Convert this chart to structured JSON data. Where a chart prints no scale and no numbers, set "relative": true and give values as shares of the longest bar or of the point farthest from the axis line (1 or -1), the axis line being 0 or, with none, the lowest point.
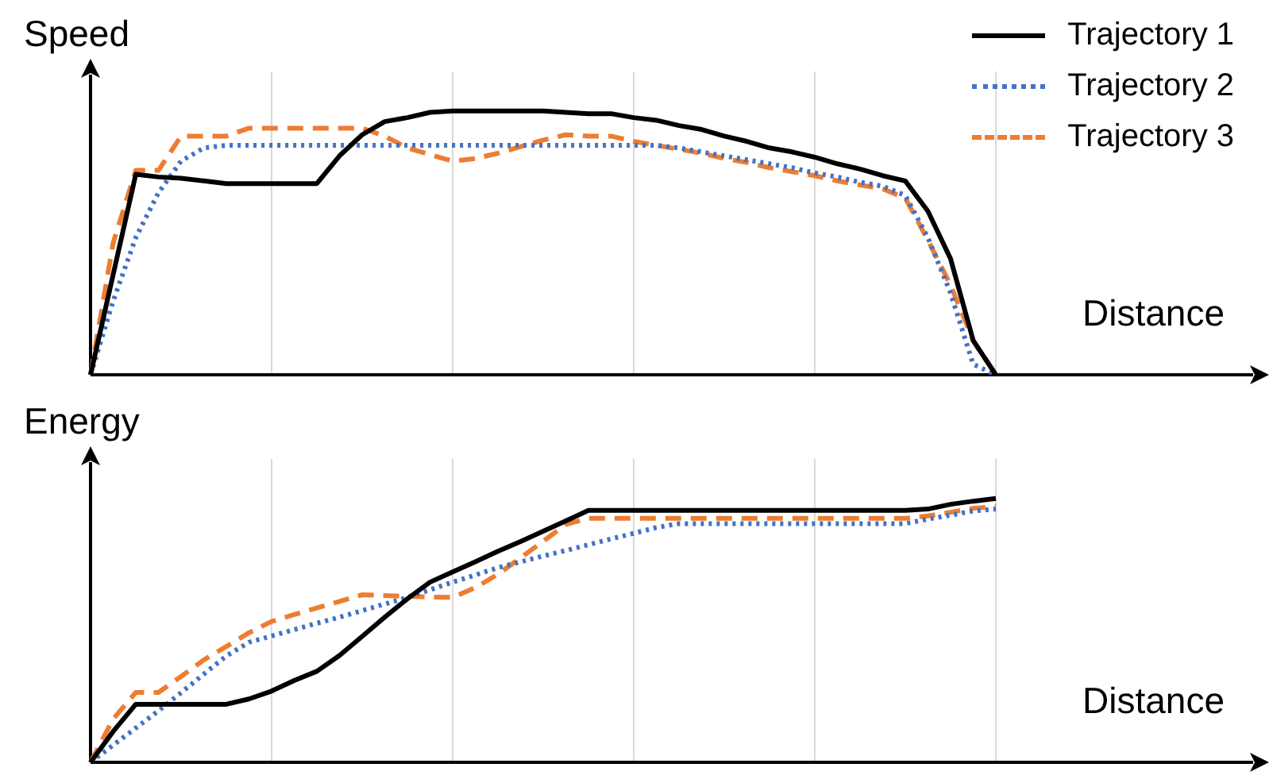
{
  "chart_data": [
    {
      "type": "line",
      "relative": true,
      "xlabel": "Distance",
      "ylabel": "Speed",
      "legend": "top right",
      "grid": "x",
      "marker": "none",
      "categories": [
        null,
        null,
        null,
        null,
        null,
        null,
        null,
        null,
        null,
        null,
        null,
        null,
        null,
        null,
        null,
        null,
        null,
        null,
        null,
        null,
        null,
        null,
        null,
        null,
        null,
        null,
        null,
        null,
        null,
        null,
        null,
        null,
        null,
        null,
        null,
        null,
        null,
        null,
        null,
        null,
        null
      ],
      "series": [
        {
          "name": "Trajectory 1",
          "color": "#000000",
          "line_style": "solid",
          "values": [
            0,
            0.38,
            0.76,
            0.75,
            0.745,
            0.735,
            0.725,
            0.725,
            0.725,
            0.725,
            0.725,
            0.83,
            0.91,
            0.96,
            0.975,
            0.995,
            1,
            1,
            1,
            1,
            1,
            0.995,
            0.99,
            0.99,
            0.975,
            0.965,
            0.945,
            0.93,
            0.905,
            0.885,
            0.86,
            0.845,
            0.825,
            0.8,
            0.78,
            0.755,
            0.735,
            0.62,
            0.44,
            0.13,
            0
          ]
        },
        {
          "name": "Trajectory 2",
          "color": "#4472c4",
          "line_style": "dotted",
          "values": [
            0,
            0.28,
            0.52,
            0.69,
            0.81,
            0.86,
            0.87,
            0.87,
            0.87,
            0.87,
            0.87,
            0.87,
            0.87,
            0.87,
            0.87,
            0.87,
            0.87,
            0.87,
            0.87,
            0.87,
            0.87,
            0.87,
            0.87,
            0.87,
            0.87,
            0.87,
            0.86,
            0.845,
            0.83,
            0.815,
            0.8,
            0.785,
            0.765,
            0.75,
            0.73,
            0.715,
            0.68,
            0.52,
            0.31,
            0.04,
            0
          ]
        },
        {
          "name": "Trajectory 3",
          "color": "#ed7d31",
          "line_style": "dashed",
          "values": [
            0,
            0.5,
            0.775,
            0.775,
            0.905,
            0.905,
            0.905,
            0.935,
            0.935,
            0.935,
            0.935,
            0.935,
            0.935,
            0.905,
            0.86,
            0.835,
            0.81,
            0.82,
            0.84,
            0.865,
            0.89,
            0.91,
            0.905,
            0.905,
            0.885,
            0.87,
            0.855,
            0.84,
            0.82,
            0.805,
            0.785,
            0.77,
            0.755,
            0.735,
            0.72,
            0.705,
            0.67,
            0.51,
            0.34,
            0.13,
            0
          ]
        }
      ]
    },
    {
      "type": "line",
      "relative": true,
      "xlabel": "Distance",
      "ylabel": "Energy",
      "grid": "x",
      "marker": "none",
      "categories": [
        null,
        null,
        null,
        null,
        null,
        null,
        null,
        null,
        null,
        null,
        null,
        null,
        null,
        null,
        null,
        null,
        null,
        null,
        null,
        null,
        null,
        null,
        null,
        null,
        null,
        null,
        null,
        null,
        null,
        null,
        null,
        null,
        null,
        null,
        null,
        null,
        null,
        null,
        null,
        null,
        null
      ],
      "series": [
        {
          "color": "#000000",
          "line_style": "solid",
          "values": [
            0,
            0.117,
            0.22,
            0.22,
            0.22,
            0.22,
            0.22,
            0.24,
            0.27,
            0.31,
            0.345,
            0.405,
            0.477,
            0.55,
            0.62,
            0.683,
            0.722,
            0.76,
            0.8,
            0.837,
            0.876,
            0.915,
            0.955,
            0.955,
            0.955,
            0.955,
            0.955,
            0.955,
            0.955,
            0.955,
            0.955,
            0.955,
            0.955,
            0.955,
            0.955,
            0.955,
            0.955,
            0.96,
            0.978,
            0.99,
            1
          ]
        },
        {
          "color": "#4472c4",
          "line_style": "dotted",
          "values": [
            0,
            0.065,
            0.13,
            0.195,
            0.264,
            0.334,
            0.403,
            0.455,
            0.479,
            0.503,
            0.527,
            0.55,
            0.575,
            0.6,
            0.625,
            0.654,
            0.683,
            0.71,
            0.738,
            0.76,
            0.782,
            0.803,
            0.825,
            0.847,
            0.868,
            0.89,
            0.905,
            0.905,
            0.905,
            0.905,
            0.905,
            0.905,
            0.905,
            0.905,
            0.905,
            0.905,
            0.905,
            0.922,
            0.937,
            0.953,
            0.96
          ]
        },
        {
          "color": "#ed7d31",
          "line_style": "dashed",
          "values": [
            0,
            0.164,
            0.265,
            0.265,
            0.325,
            0.388,
            0.439,
            0.491,
            0.534,
            0.56,
            0.585,
            0.61,
            0.635,
            0.632,
            0.629,
            0.626,
            0.625,
            0.662,
            0.713,
            0.775,
            0.838,
            0.902,
            0.925,
            0.925,
            0.925,
            0.925,
            0.925,
            0.925,
            0.925,
            0.925,
            0.925,
            0.925,
            0.925,
            0.925,
            0.925,
            0.925,
            0.925,
            0.934,
            0.948,
            0.963,
            0.97
          ]
        }
      ]
    }
  ]
}
